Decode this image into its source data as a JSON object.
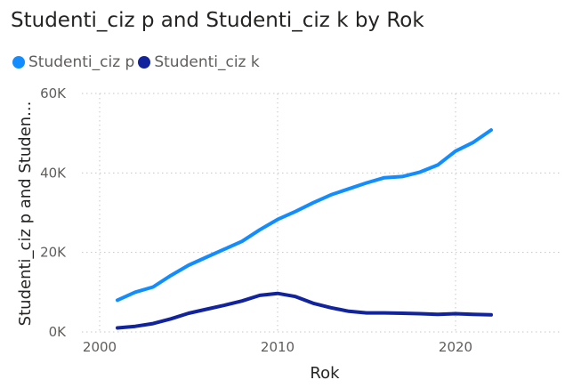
{
  "chart_data": {
    "type": "line",
    "title": "Studenti_ciz p and Studenti_ciz k by Rok",
    "xlabel": "Rok",
    "ylabel": "Studenti_ciz p and Studen...",
    "xlim": [
      1999,
      2026
    ],
    "ylim": [
      0,
      60000
    ],
    "x_ticks": [
      2000,
      2010,
      2020
    ],
    "x_tick_labels": [
      "2000",
      "2010",
      "2020"
    ],
    "y_ticks": [
      0,
      20000,
      40000,
      60000
    ],
    "y_tick_labels": [
      "0K",
      "20K",
      "40K",
      "60K"
    ],
    "grid": "dotted",
    "legend_position": "top-left",
    "x": [
      2001,
      2002,
      2003,
      2004,
      2005,
      2006,
      2007,
      2008,
      2009,
      2010,
      2011,
      2012,
      2013,
      2014,
      2015,
      2016,
      2017,
      2018,
      2019,
      2020,
      2021,
      2022
    ],
    "series": [
      {
        "name": "Studenti_ciz p",
        "color": "#118dff",
        "values": [
          8000,
          10000,
          11300,
          14200,
          16800,
          18800,
          20800,
          22800,
          25700,
          28300,
          30300,
          32500,
          34500,
          36000,
          37500,
          38800,
          39100,
          40200,
          42000,
          45500,
          47700,
          50800
        ]
      },
      {
        "name": "Studenti_ciz k",
        "color": "#12239e",
        "values": [
          1000,
          1400,
          2100,
          3300,
          4700,
          5700,
          6700,
          7800,
          9200,
          9700,
          8900,
          7200,
          6100,
          5200,
          4800,
          4800,
          4700,
          4600,
          4400,
          4600,
          4400,
          4300
        ]
      }
    ]
  }
}
